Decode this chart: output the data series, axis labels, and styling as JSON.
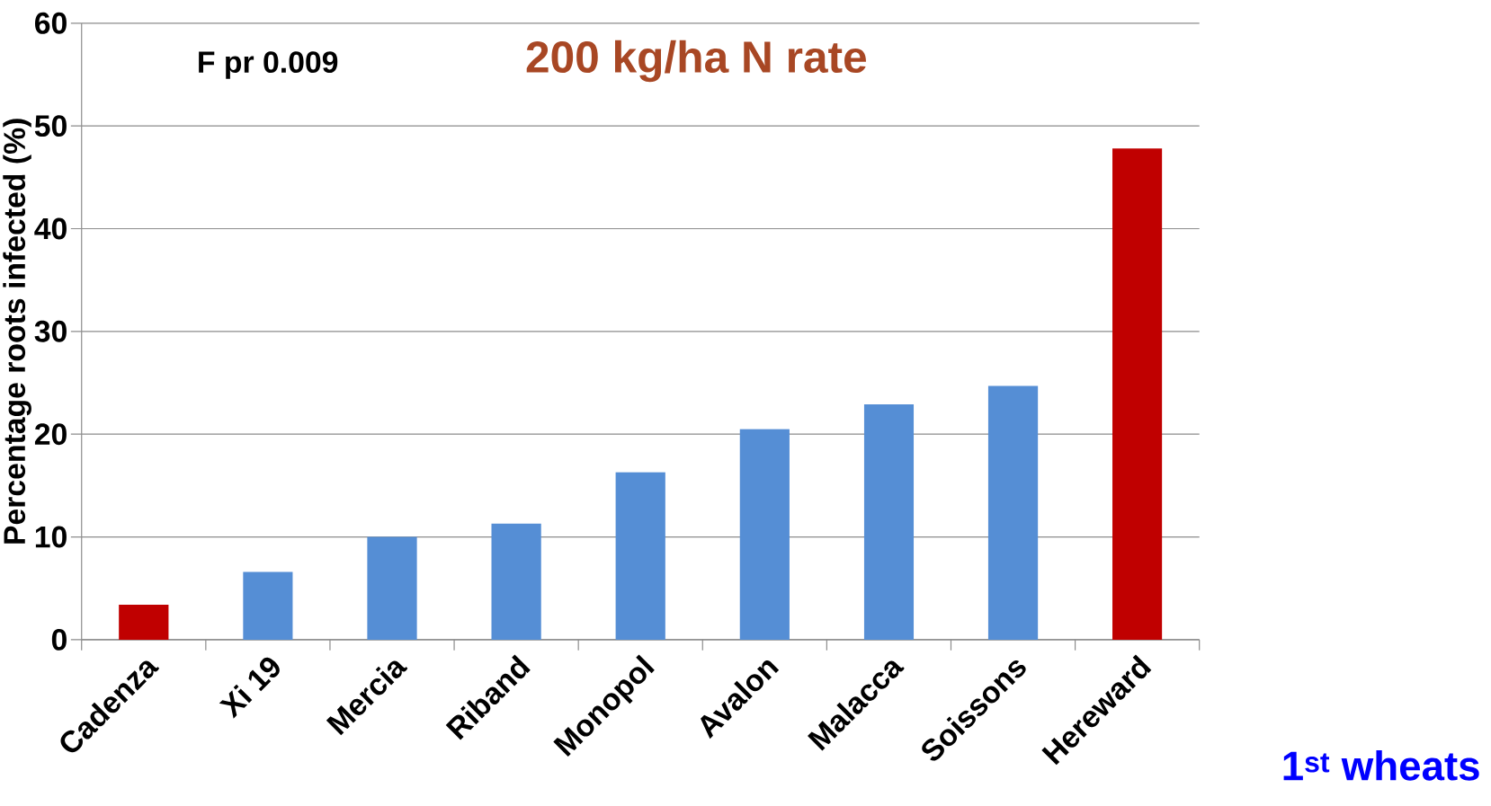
{
  "chart_data": {
    "type": "bar",
    "title": "200 kg/ha N rate",
    "ylabel": "Percentage roots infected (%)",
    "annotations": [
      "F pr 0.009",
      "1$^{st}$ wheats"
    ],
    "categories": [
      "Cadenza",
      "Xi 19",
      "Mercia",
      "Riband",
      "Monopol",
      "Avalon",
      "Malacca",
      "Soissons",
      "Hereward"
    ],
    "values": [
      3.4,
      6.6,
      10.0,
      11.3,
      16.3,
      20.5,
      22.9,
      24.7,
      47.8
    ],
    "colors": [
      "#c00000",
      "#558ed5",
      "#558ed5",
      "#558ed5",
      "#558ed5",
      "#558ed5",
      "#558ed5",
      "#558ed5",
      "#c00000"
    ],
    "ylim": [
      0,
      60
    ],
    "yticks": [
      0,
      10,
      20,
      30,
      40,
      50,
      60
    ],
    "grid": "y"
  }
}
